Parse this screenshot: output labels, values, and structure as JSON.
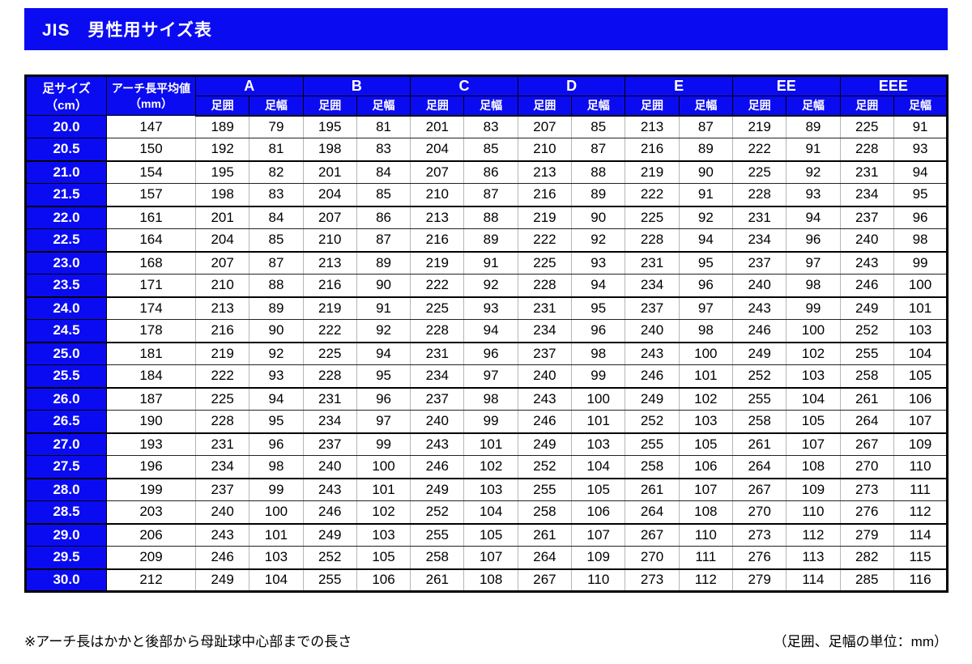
{
  "title": "JIS　男性用サイズ表",
  "colors": {
    "header_blue": "#0b0bf2",
    "border_black": "#000000",
    "grid_gray": "#b5b5b5"
  },
  "table": {
    "col1_header": "足サイズ（cm）",
    "col2_header_line1": "アーチ長平均値",
    "col2_header_line2": "（mm）",
    "groups": [
      "A",
      "B",
      "C",
      "D",
      "E",
      "EE",
      "EEE"
    ],
    "sub_headers": [
      "足囲",
      "足幅"
    ],
    "rows": [
      {
        "size": "20.0",
        "arch": 147,
        "values": [
          189,
          79,
          195,
          81,
          201,
          83,
          207,
          85,
          213,
          87,
          219,
          89,
          225,
          91
        ]
      },
      {
        "size": "20.5",
        "arch": 150,
        "values": [
          192,
          81,
          198,
          83,
          204,
          85,
          210,
          87,
          216,
          89,
          222,
          91,
          228,
          93
        ]
      },
      {
        "size": "21.0",
        "arch": 154,
        "values": [
          195,
          82,
          201,
          84,
          207,
          86,
          213,
          88,
          219,
          90,
          225,
          92,
          231,
          94
        ]
      },
      {
        "size": "21.5",
        "arch": 157,
        "values": [
          198,
          83,
          204,
          85,
          210,
          87,
          216,
          89,
          222,
          91,
          228,
          93,
          234,
          95
        ]
      },
      {
        "size": "22.0",
        "arch": 161,
        "values": [
          201,
          84,
          207,
          86,
          213,
          88,
          219,
          90,
          225,
          92,
          231,
          94,
          237,
          96
        ]
      },
      {
        "size": "22.5",
        "arch": 164,
        "values": [
          204,
          85,
          210,
          87,
          216,
          89,
          222,
          92,
          228,
          94,
          234,
          96,
          240,
          98
        ]
      },
      {
        "size": "23.0",
        "arch": 168,
        "values": [
          207,
          87,
          213,
          89,
          219,
          91,
          225,
          93,
          231,
          95,
          237,
          97,
          243,
          99
        ]
      },
      {
        "size": "23.5",
        "arch": 171,
        "values": [
          210,
          88,
          216,
          90,
          222,
          92,
          228,
          94,
          234,
          96,
          240,
          98,
          246,
          100
        ]
      },
      {
        "size": "24.0",
        "arch": 174,
        "values": [
          213,
          89,
          219,
          91,
          225,
          93,
          231,
          95,
          237,
          97,
          243,
          99,
          249,
          101
        ]
      },
      {
        "size": "24.5",
        "arch": 178,
        "values": [
          216,
          90,
          222,
          92,
          228,
          94,
          234,
          96,
          240,
          98,
          246,
          100,
          252,
          103
        ]
      },
      {
        "size": "25.0",
        "arch": 181,
        "values": [
          219,
          92,
          225,
          94,
          231,
          96,
          237,
          98,
          243,
          100,
          249,
          102,
          255,
          104
        ]
      },
      {
        "size": "25.5",
        "arch": 184,
        "values": [
          222,
          93,
          228,
          95,
          234,
          97,
          240,
          99,
          246,
          101,
          252,
          103,
          258,
          105
        ]
      },
      {
        "size": "26.0",
        "arch": 187,
        "values": [
          225,
          94,
          231,
          96,
          237,
          98,
          243,
          100,
          249,
          102,
          255,
          104,
          261,
          106
        ]
      },
      {
        "size": "26.5",
        "arch": 190,
        "values": [
          228,
          95,
          234,
          97,
          240,
          99,
          246,
          101,
          252,
          103,
          258,
          105,
          264,
          107
        ]
      },
      {
        "size": "27.0",
        "arch": 193,
        "values": [
          231,
          96,
          237,
          99,
          243,
          101,
          249,
          103,
          255,
          105,
          261,
          107,
          267,
          109
        ]
      },
      {
        "size": "27.5",
        "arch": 196,
        "values": [
          234,
          98,
          240,
          100,
          246,
          102,
          252,
          104,
          258,
          106,
          264,
          108,
          270,
          110
        ]
      },
      {
        "size": "28.0",
        "arch": 199,
        "values": [
          237,
          99,
          243,
          101,
          249,
          103,
          255,
          105,
          261,
          107,
          267,
          109,
          273,
          111
        ]
      },
      {
        "size": "28.5",
        "arch": 203,
        "values": [
          240,
          100,
          246,
          102,
          252,
          104,
          258,
          106,
          264,
          108,
          270,
          110,
          276,
          112
        ]
      },
      {
        "size": "29.0",
        "arch": 206,
        "values": [
          243,
          101,
          249,
          103,
          255,
          105,
          261,
          107,
          267,
          110,
          273,
          112,
          279,
          114
        ]
      },
      {
        "size": "29.5",
        "arch": 209,
        "values": [
          246,
          103,
          252,
          105,
          258,
          107,
          264,
          109,
          270,
          111,
          276,
          113,
          282,
          115
        ]
      },
      {
        "size": "30.0",
        "arch": 212,
        "values": [
          249,
          104,
          255,
          106,
          261,
          108,
          267,
          110,
          273,
          112,
          279,
          114,
          285,
          116
        ]
      }
    ]
  },
  "footnotes": {
    "left": "※アーチ長はかかと後部から母趾球中心部までの長さ",
    "right": "（足囲、足幅の単位：mm）"
  }
}
